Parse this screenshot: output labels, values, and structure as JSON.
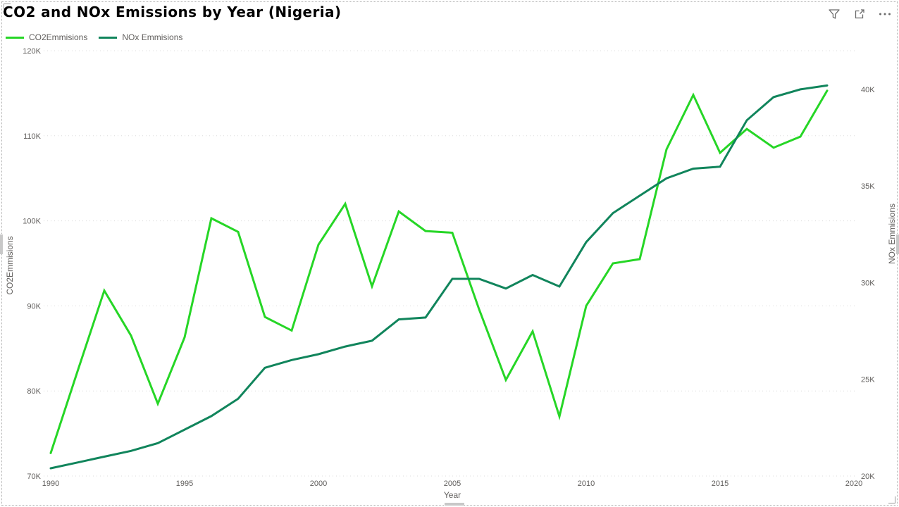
{
  "header": {
    "title": "CO2 and NOx Emissions by Year (Nigeria)",
    "icons": [
      {
        "name": "filter-icon",
        "label": "Filters"
      },
      {
        "name": "focus-mode-icon",
        "label": "Focus mode"
      },
      {
        "name": "more-options-icon",
        "label": "More options"
      }
    ]
  },
  "legend": {
    "items": [
      {
        "label": "CO2Emmisions",
        "color": "#26d626"
      },
      {
        "label": "NOx Emmisions",
        "color": "#11855c"
      }
    ]
  },
  "chart_data": {
    "type": "line",
    "title": "CO2 and NOx Emissions by Year (Nigeria)",
    "xlabel": "Year",
    "grid": "horizontal dotted",
    "legend_position": "top-left",
    "x_range": [
      1990,
      2020
    ],
    "x": [
      1990,
      1991,
      1992,
      1993,
      1994,
      1995,
      1996,
      1997,
      1998,
      1999,
      2000,
      2001,
      2002,
      2003,
      2004,
      2005,
      2006,
      2007,
      2008,
      2009,
      2010,
      2011,
      2012,
      2013,
      2014,
      2015,
      2016,
      2017,
      2018,
      2019
    ],
    "x_ticks": [
      {
        "label": "1990",
        "value": 1990
      },
      {
        "label": "1995",
        "value": 1995
      },
      {
        "label": "2000",
        "value": 2000
      },
      {
        "label": "2005",
        "value": 2005
      },
      {
        "label": "2010",
        "value": 2010
      },
      {
        "label": "2015",
        "value": 2015
      },
      {
        "label": "2020",
        "value": 2020
      }
    ],
    "left_axis": {
      "title": "CO2Emmisions",
      "range": [
        70000,
        120000
      ],
      "ticks": [
        {
          "label": "70K",
          "value": 70000
        },
        {
          "label": "80K",
          "value": 80000
        },
        {
          "label": "90K",
          "value": 90000
        },
        {
          "label": "100K",
          "value": 100000
        },
        {
          "label": "110K",
          "value": 110000
        },
        {
          "label": "120K",
          "value": 120000
        }
      ]
    },
    "right_axis": {
      "title": "NOx Emmisions",
      "range": [
        20000,
        42000
      ],
      "ticks": [
        {
          "label": "20K",
          "value": 20000
        },
        {
          "label": "25K",
          "value": 25000
        },
        {
          "label": "30K",
          "value": 30000
        },
        {
          "label": "35K",
          "value": 35000
        },
        {
          "label": "40K",
          "value": 40000
        }
      ]
    },
    "series": [
      {
        "name": "CO2Emmisions",
        "axis": "left",
        "color": "#26d626",
        "values": [
          72700,
          82300,
          91800,
          86500,
          78500,
          86300,
          100300,
          98700,
          88700,
          87100,
          97200,
          102000,
          92300,
          101100,
          98800,
          98600,
          89600,
          81300,
          87000,
          77000,
          90000,
          95000,
          95500,
          108400,
          114800,
          108000,
          110800,
          108600,
          109900,
          115300
        ]
      },
      {
        "name": "NOx Emmisions",
        "axis": "right",
        "color": "#11855c",
        "values": [
          20400,
          20700,
          21000,
          21300,
          21700,
          22400,
          23100,
          24000,
          25600,
          26000,
          26300,
          26700,
          27000,
          28100,
          28200,
          30200,
          30200,
          29700,
          30400,
          29800,
          32100,
          33600,
          34500,
          35400,
          35900,
          36000,
          38400,
          39600,
          40000,
          40200
        ]
      }
    ]
  }
}
